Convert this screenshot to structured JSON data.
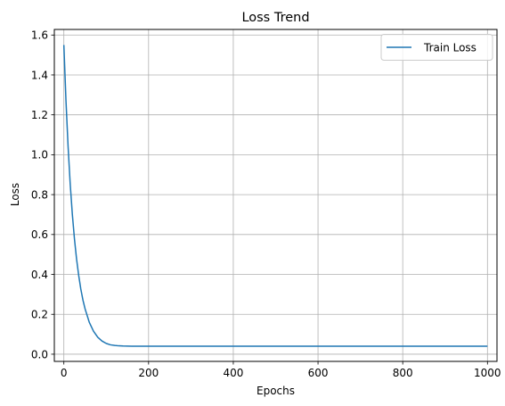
{
  "chart_data": {
    "type": "line",
    "title": "Loss Trend",
    "xlabel": "Epochs",
    "ylabel": "Loss",
    "xlim": [
      -22.5,
      1022.5
    ],
    "ylim": [
      -0.036,
      1.628
    ],
    "xticks": [
      0,
      200,
      400,
      600,
      800,
      1000
    ],
    "xtick_labels": [
      "0",
      "200",
      "400",
      "600",
      "800",
      "1000"
    ],
    "yticks": [
      0.0,
      0.2,
      0.4,
      0.6,
      0.8,
      1.0,
      1.2,
      1.4,
      1.6
    ],
    "ytick_labels": [
      "0.0",
      "0.2",
      "0.4",
      "0.6",
      "0.8",
      "1.0",
      "1.2",
      "1.4",
      "1.6"
    ],
    "grid": true,
    "legend_position": "top-right",
    "series": [
      {
        "name": "Train Loss",
        "color": "#1f77b4",
        "x": [
          0,
          5,
          10,
          15,
          20,
          25,
          30,
          35,
          40,
          45,
          50,
          60,
          70,
          80,
          90,
          100,
          110,
          120,
          130,
          140,
          150,
          160,
          175,
          200,
          250,
          300,
          400,
          500,
          600,
          700,
          800,
          900,
          1000
        ],
        "y": [
          1.55,
          1.27,
          1.04,
          0.853,
          0.702,
          0.578,
          0.477,
          0.395,
          0.327,
          0.272,
          0.228,
          0.16,
          0.115,
          0.085,
          0.066,
          0.054,
          0.047,
          0.044,
          0.042,
          0.041,
          0.0405,
          0.0402,
          0.04,
          0.04,
          0.04,
          0.04,
          0.04,
          0.04,
          0.04,
          0.04,
          0.04,
          0.04,
          0.04
        ]
      }
    ]
  }
}
